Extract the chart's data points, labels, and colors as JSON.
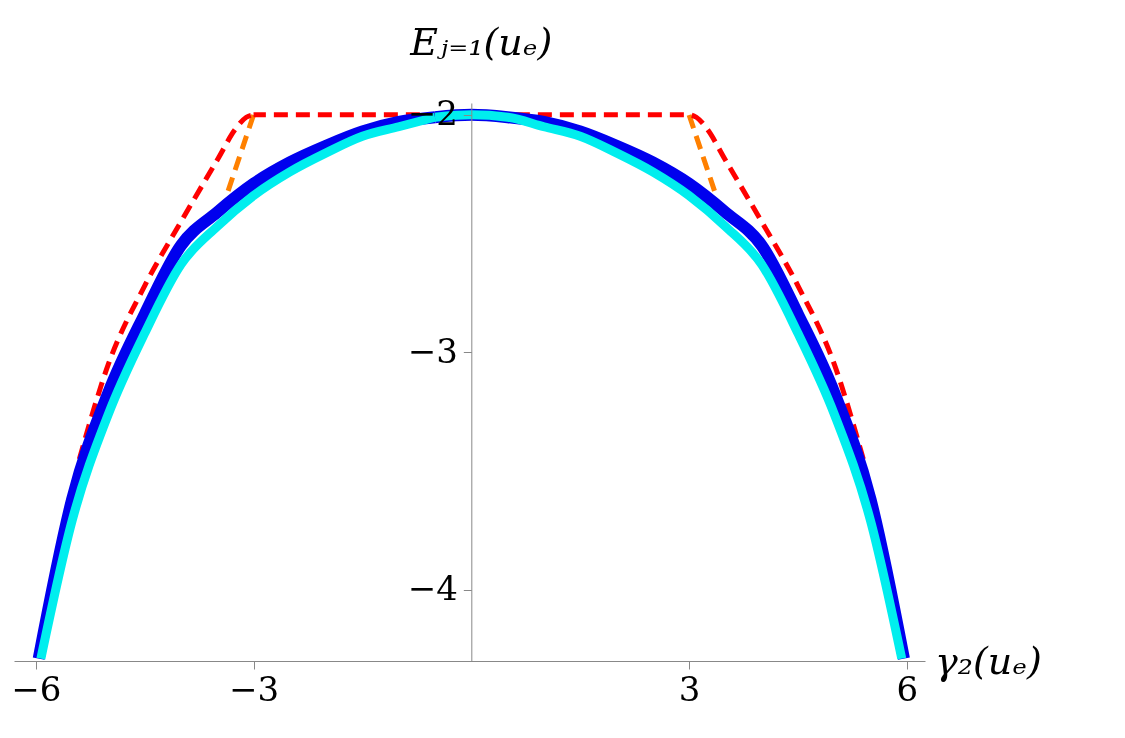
{
  "chart_data": {
    "type": "line",
    "xlabel": "γ₂(uₑ)",
    "ylabel": "Eⱼ₌₁(uₑ)",
    "xlim": [
      -6.3,
      6.25
    ],
    "ylim": [
      -4.3,
      -1.95
    ],
    "xticks": [
      -6,
      -3,
      3,
      6
    ],
    "yticks": [
      -2,
      -3,
      -4
    ],
    "grid": false,
    "marker": "none",
    "series": [
      {
        "color": "#ff8000",
        "line_style": "dashed",
        "x": [
          -3.35,
          -3,
          0,
          3,
          3.35
        ],
        "values": [
          -2.32,
          -2,
          null,
          -2,
          -2.32
        ]
      },
      {
        "color": "#ff0000",
        "line_style": "dashed",
        "x": [
          -5.4,
          -5,
          -4.5,
          -4,
          -3.5,
          -3.25,
          -3.1,
          -3,
          3,
          3.1,
          3.25,
          3.5,
          4,
          4.5,
          5,
          5.4
        ],
        "values": [
          -3.45,
          -3.05,
          -2.72,
          -2.45,
          -2.19,
          -2.06,
          -2.01,
          -2,
          -2,
          -2.01,
          -2.06,
          -2.19,
          -2.45,
          -2.72,
          -3.05,
          -3.45
        ]
      },
      {
        "color": "#0000ee",
        "line_style": "solid",
        "x": [
          -5.96,
          -5.5,
          -5,
          -4.5,
          -4,
          -3.5,
          -3,
          -2.5,
          -2,
          -1.5,
          -1,
          -0.5,
          0,
          0.5,
          1,
          1.5,
          2,
          2.5,
          3,
          3.5,
          4,
          4.5,
          5,
          5.5,
          5.96
        ],
        "values": [
          -4.29,
          -3.62,
          -3.17,
          -2.84,
          -2.55,
          -2.41,
          -2.29,
          -2.2,
          -2.13,
          -2.07,
          -2.03,
          -2.01,
          -2,
          -2.01,
          -2.03,
          -2.07,
          -2.13,
          -2.2,
          -2.29,
          -2.41,
          -2.55,
          -2.84,
          -3.17,
          -3.62,
          -4.29
        ]
      },
      {
        "color": "#00eeee",
        "line_style": "solid",
        "x": [
          -5.93,
          -5.5,
          -5,
          -4.5,
          -4,
          -3.5,
          -3,
          -2.5,
          -2,
          -1.5,
          -1,
          -0.5,
          0,
          0.5,
          1,
          1.5,
          2,
          2.5,
          3,
          3.5,
          4,
          4.5,
          5,
          5.5,
          5.93
        ],
        "values": [
          -4.29,
          -3.71,
          -3.26,
          -2.92,
          -2.63,
          -2.47,
          -2.34,
          -2.24,
          -2.16,
          -2.09,
          -2.05,
          -2.01,
          -2,
          -2.01,
          -2.05,
          -2.09,
          -2.16,
          -2.24,
          -2.34,
          -2.47,
          -2.63,
          -2.92,
          -3.26,
          -3.71,
          -4.29
        ]
      }
    ]
  }
}
